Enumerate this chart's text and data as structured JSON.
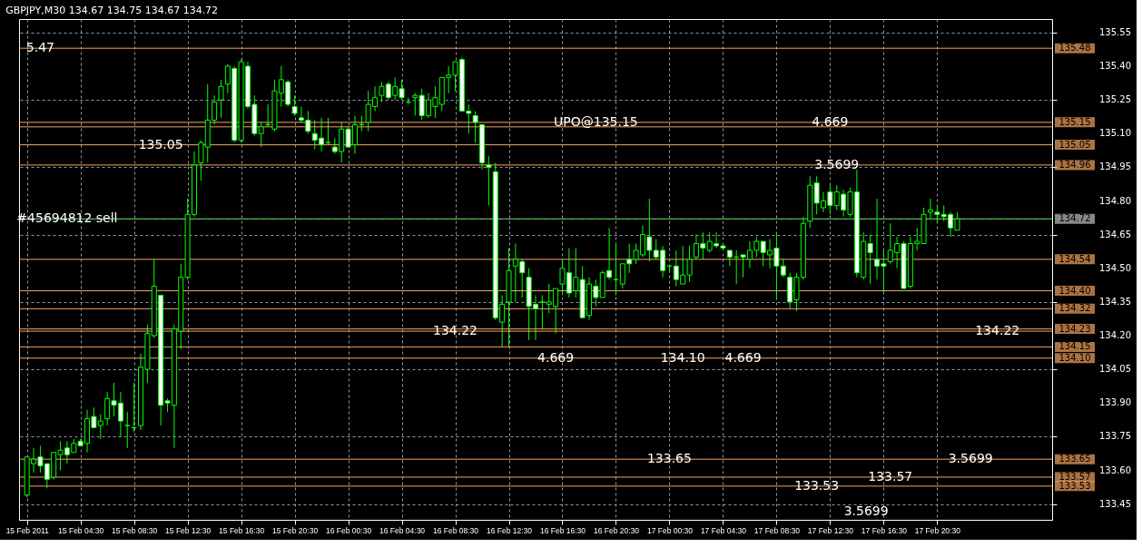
{
  "chart_data": {
    "type": "candlestick",
    "title": "GBPJPY,M30 134.67 134.75 134.67 134.72",
    "color": "#00ff00",
    "grid": true,
    "x": [
      "2011-02-15T00:30",
      "2011-02-15T01:00",
      "2011-02-15T01:30",
      "2011-02-15T02:00",
      "2011-02-15T02:30",
      "2011-02-15T03:00",
      "2011-02-15T03:30",
      "2011-02-15T04:00",
      "2011-02-15T04:30",
      "2011-02-15T05:00",
      "2011-02-15T05:30",
      "2011-02-15T06:00",
      "2011-02-15T06:30",
      "2011-02-15T07:00",
      "2011-02-15T07:30",
      "2011-02-15T08:00",
      "2011-02-15T08:30",
      "2011-02-15T09:00",
      "2011-02-15T09:30",
      "2011-02-15T10:00",
      "2011-02-15T10:30",
      "2011-02-15T11:00",
      "2011-02-15T11:30",
      "2011-02-15T12:00",
      "2011-02-15T12:30",
      "2011-02-15T13:00",
      "2011-02-15T13:30",
      "2011-02-15T14:00",
      "2011-02-15T14:30",
      "2011-02-15T15:00",
      "2011-02-15T15:30",
      "2011-02-15T16:00",
      "2011-02-15T16:30",
      "2011-02-15T17:00",
      "2011-02-15T17:30",
      "2011-02-15T18:00",
      "2011-02-15T18:30",
      "2011-02-15T19:00",
      "2011-02-15T19:30",
      "2011-02-15T20:00",
      "2011-02-15T20:30",
      "2011-02-15T21:00",
      "2011-02-15T21:30",
      "2011-02-15T22:00",
      "2011-02-15T22:30",
      "2011-02-15T23:00",
      "2011-02-15T23:30",
      "2011-02-16T00:00",
      "2011-02-16T00:30",
      "2011-02-16T01:00",
      "2011-02-16T01:30",
      "2011-02-16T02:00",
      "2011-02-16T02:30",
      "2011-02-16T03:00",
      "2011-02-16T03:30",
      "2011-02-16T04:00",
      "2011-02-16T04:30",
      "2011-02-16T05:00",
      "2011-02-16T05:30",
      "2011-02-16T06:00",
      "2011-02-16T06:30",
      "2011-02-16T07:00",
      "2011-02-16T07:30",
      "2011-02-16T08:00",
      "2011-02-16T08:30",
      "2011-02-16T09:00",
      "2011-02-16T09:30",
      "2011-02-16T10:00",
      "2011-02-16T10:30",
      "2011-02-16T11:00",
      "2011-02-16T11:30",
      "2011-02-16T12:00",
      "2011-02-16T12:30",
      "2011-02-16T13:00",
      "2011-02-16T13:30",
      "2011-02-16T14:00",
      "2011-02-16T14:30",
      "2011-02-16T15:00",
      "2011-02-16T15:30",
      "2011-02-16T16:00",
      "2011-02-16T16:30",
      "2011-02-16T17:00",
      "2011-02-16T17:30",
      "2011-02-16T18:00",
      "2011-02-16T18:30",
      "2011-02-16T19:00",
      "2011-02-16T19:30",
      "2011-02-16T20:00",
      "2011-02-16T20:30",
      "2011-02-16T21:00",
      "2011-02-16T21:30",
      "2011-02-16T22:00",
      "2011-02-16T22:30",
      "2011-02-16T23:00",
      "2011-02-16T23:30",
      "2011-02-17T00:00",
      "2011-02-17T00:30",
      "2011-02-17T01:00",
      "2011-02-17T01:30",
      "2011-02-17T02:00",
      "2011-02-17T02:30",
      "2011-02-17T03:00",
      "2011-02-17T03:30",
      "2011-02-17T04:00",
      "2011-02-17T04:30",
      "2011-02-17T05:00",
      "2011-02-17T05:30",
      "2011-02-17T06:00",
      "2011-02-17T06:30",
      "2011-02-17T07:00",
      "2011-02-17T07:30",
      "2011-02-17T08:00",
      "2011-02-17T08:30",
      "2011-02-17T09:00",
      "2011-02-17T09:30",
      "2011-02-17T10:00",
      "2011-02-17T10:30",
      "2011-02-17T11:00",
      "2011-02-17T11:30",
      "2011-02-17T12:00",
      "2011-02-17T12:30",
      "2011-02-17T13:00",
      "2011-02-17T13:30",
      "2011-02-17T14:00",
      "2011-02-17T14:30",
      "2011-02-17T15:00",
      "2011-02-17T15:30",
      "2011-02-17T16:00",
      "2011-02-17T16:30",
      "2011-02-17T17:00",
      "2011-02-17T17:30",
      "2011-02-17T18:00",
      "2011-02-17T18:30",
      "2011-02-17T19:00",
      "2011-02-17T19:30",
      "2011-02-17T20:00",
      "2011-02-17T20:30",
      "2011-02-17T21:00",
      "2011-02-17T21:30",
      "2011-02-17T22:00"
    ],
    "ohlc": [
      [
        133.49,
        133.66,
        133.48,
        133.66
      ],
      [
        133.63,
        133.7,
        133.59,
        133.65
      ],
      [
        133.66,
        133.71,
        133.59,
        133.62
      ],
      [
        133.63,
        133.63,
        133.52,
        133.56
      ],
      [
        133.57,
        133.68,
        133.56,
        133.68
      ],
      [
        133.67,
        133.73,
        133.6,
        133.69
      ],
      [
        133.7,
        133.73,
        133.63,
        133.67
      ],
      [
        133.68,
        133.74,
        133.68,
        133.72
      ],
      [
        133.73,
        133.74,
        133.71,
        133.71
      ],
      [
        133.72,
        133.87,
        133.68,
        133.83
      ],
      [
        133.84,
        133.88,
        133.79,
        133.79
      ],
      [
        133.8,
        133.85,
        133.74,
        133.82
      ],
      [
        133.83,
        133.95,
        133.8,
        133.92
      ],
      [
        133.91,
        133.99,
        133.84,
        133.89
      ],
      [
        133.9,
        133.95,
        133.75,
        133.82
      ],
      [
        133.8,
        133.86,
        133.7,
        133.8
      ],
      [
        133.79,
        133.99,
        133.77,
        133.79
      ],
      [
        133.8,
        134.12,
        133.78,
        134.06
      ],
      [
        134.05,
        134.25,
        133.99,
        134.21
      ],
      [
        134.2,
        134.54,
        134.19,
        134.42
      ],
      [
        134.38,
        134.38,
        133.8,
        133.89
      ],
      [
        133.91,
        133.92,
        133.86,
        133.9
      ],
      [
        133.89,
        134.25,
        133.7,
        134.23
      ],
      [
        134.22,
        134.52,
        134.14,
        134.46
      ],
      [
        134.46,
        134.81,
        134.45,
        134.74
      ],
      [
        134.74,
        135.02,
        134.73,
        134.96
      ],
      [
        134.97,
        135.07,
        134.89,
        135.06
      ],
      [
        135.04,
        135.32,
        134.97,
        135.16
      ],
      [
        135.16,
        135.27,
        135.14,
        135.24
      ],
      [
        135.25,
        135.34,
        135.17,
        135.31
      ],
      [
        135.32,
        135.41,
        135.28,
        135.4
      ],
      [
        135.39,
        135.4,
        135.06,
        135.07
      ],
      [
        135.07,
        135.43,
        135.06,
        135.42
      ],
      [
        135.4,
        135.42,
        135.21,
        135.22
      ],
      [
        135.23,
        135.27,
        135.09,
        135.1
      ],
      [
        135.1,
        135.15,
        135.04,
        135.13
      ],
      [
        135.14,
        135.23,
        135.13,
        135.14
      ],
      [
        135.12,
        135.34,
        135.11,
        135.29
      ],
      [
        135.28,
        135.4,
        135.22,
        135.34
      ],
      [
        135.33,
        135.34,
        135.22,
        135.23
      ],
      [
        135.22,
        135.27,
        135.18,
        135.19
      ],
      [
        135.17,
        135.22,
        135.15,
        135.16
      ],
      [
        135.16,
        135.2,
        135.1,
        135.11
      ],
      [
        135.1,
        135.16,
        135.03,
        135.07
      ],
      [
        135.08,
        135.17,
        135.02,
        135.05
      ],
      [
        135.06,
        135.17,
        135.05,
        135.06
      ],
      [
        135.04,
        135.08,
        135.01,
        135.02
      ],
      [
        135.02,
        135.15,
        134.97,
        135.12
      ],
      [
        135.12,
        135.13,
        135.04,
        135.04
      ],
      [
        135.05,
        135.18,
        135.01,
        135.14
      ],
      [
        135.14,
        135.18,
        135.11,
        135.14
      ],
      [
        135.15,
        135.29,
        135.11,
        135.23
      ],
      [
        135.22,
        135.31,
        135.2,
        135.26
      ],
      [
        135.27,
        135.33,
        135.24,
        135.31
      ],
      [
        135.32,
        135.33,
        135.25,
        135.26
      ],
      [
        135.27,
        135.35,
        135.25,
        135.31
      ],
      [
        135.3,
        135.34,
        135.25,
        135.26
      ],
      [
        135.24,
        135.26,
        135.23,
        135.24
      ],
      [
        135.26,
        135.28,
        135.18,
        135.27
      ],
      [
        135.27,
        135.3,
        135.16,
        135.18
      ],
      [
        135.18,
        135.28,
        135.17,
        135.25
      ],
      [
        135.22,
        135.31,
        135.17,
        135.26
      ],
      [
        135.23,
        135.35,
        135.2,
        135.35
      ],
      [
        135.35,
        135.4,
        135.28,
        135.36
      ],
      [
        135.36,
        135.42,
        135.29,
        135.42
      ],
      [
        135.43,
        135.44,
        135.2,
        135.2
      ],
      [
        135.2,
        135.23,
        135.1,
        135.19
      ],
      [
        135.18,
        135.2,
        135.06,
        135.15
      ],
      [
        135.14,
        135.14,
        134.94,
        134.97
      ],
      [
        134.96,
        135.0,
        134.78,
        134.95
      ],
      [
        134.93,
        134.97,
        134.27,
        134.28
      ],
      [
        134.26,
        134.38,
        134.15,
        134.34
      ],
      [
        134.35,
        134.59,
        134.15,
        134.49
      ],
      [
        134.51,
        134.61,
        134.35,
        134.54
      ],
      [
        134.53,
        134.54,
        134.37,
        134.48
      ],
      [
        134.46,
        134.5,
        134.18,
        134.33
      ],
      [
        134.34,
        134.38,
        134.18,
        134.32
      ],
      [
        134.35,
        134.38,
        134.23,
        134.35
      ],
      [
        134.34,
        134.43,
        134.3,
        134.35
      ],
      [
        134.33,
        134.41,
        134.21,
        134.41
      ],
      [
        134.43,
        134.54,
        134.38,
        134.5
      ],
      [
        134.48,
        134.59,
        134.37,
        134.39
      ],
      [
        134.4,
        134.59,
        134.37,
        134.46
      ],
      [
        134.45,
        134.51,
        134.28,
        134.28
      ],
      [
        134.29,
        134.46,
        134.27,
        134.43
      ],
      [
        134.42,
        134.45,
        134.33,
        134.37
      ],
      [
        134.37,
        134.49,
        134.37,
        134.48
      ],
      [
        134.49,
        134.68,
        134.45,
        134.46
      ],
      [
        134.45,
        134.61,
        134.38,
        134.45
      ],
      [
        134.43,
        134.52,
        134.41,
        134.52
      ],
      [
        134.54,
        134.61,
        134.48,
        134.52
      ],
      [
        134.54,
        134.61,
        134.52,
        134.58
      ],
      [
        134.56,
        134.69,
        134.55,
        134.65
      ],
      [
        134.64,
        134.81,
        134.53,
        134.58
      ],
      [
        134.58,
        134.63,
        134.54,
        134.55
      ],
      [
        134.58,
        134.6,
        134.46,
        134.49
      ],
      [
        134.51,
        134.51,
        134.48,
        134.51
      ],
      [
        134.51,
        134.58,
        134.42,
        134.45
      ],
      [
        134.43,
        134.6,
        134.43,
        134.47
      ],
      [
        134.47,
        134.6,
        134.44,
        134.54
      ],
      [
        134.55,
        134.65,
        134.54,
        134.61
      ],
      [
        134.61,
        134.66,
        134.54,
        134.59
      ],
      [
        134.58,
        134.66,
        134.57,
        134.62
      ],
      [
        134.61,
        134.66,
        134.59,
        134.6
      ],
      [
        134.6,
        134.61,
        134.58,
        134.59
      ],
      [
        134.58,
        134.58,
        134.51,
        134.55
      ],
      [
        134.55,
        134.58,
        134.43,
        134.55
      ],
      [
        134.56,
        134.56,
        134.46,
        134.55
      ],
      [
        134.54,
        134.62,
        134.5,
        134.58
      ],
      [
        134.58,
        134.64,
        134.55,
        134.62
      ],
      [
        134.62,
        134.62,
        134.51,
        134.57
      ],
      [
        134.56,
        134.63,
        134.5,
        134.58
      ],
      [
        134.59,
        134.66,
        134.36,
        134.51
      ],
      [
        134.51,
        134.54,
        134.46,
        134.47
      ],
      [
        134.46,
        134.48,
        134.32,
        134.35
      ],
      [
        134.36,
        134.48,
        134.31,
        134.46
      ],
      [
        134.46,
        134.73,
        134.45,
        134.7
      ],
      [
        134.71,
        134.91,
        134.68,
        134.87
      ],
      [
        134.88,
        134.91,
        134.74,
        134.79
      ],
      [
        134.77,
        134.84,
        134.75,
        134.8
      ],
      [
        134.84,
        134.87,
        134.74,
        134.78
      ],
      [
        134.78,
        134.87,
        134.76,
        134.84
      ],
      [
        134.83,
        134.85,
        134.73,
        134.76
      ],
      [
        134.74,
        134.86,
        134.73,
        134.84
      ],
      [
        134.84,
        134.94,
        134.46,
        134.48
      ],
      [
        134.46,
        134.66,
        134.45,
        134.62
      ],
      [
        134.61,
        134.65,
        134.43,
        134.57
      ],
      [
        134.54,
        134.81,
        134.45,
        134.51
      ],
      [
        134.52,
        134.58,
        134.39,
        134.51
      ],
      [
        134.53,
        134.7,
        134.52,
        134.58
      ],
      [
        134.57,
        134.64,
        134.5,
        134.61
      ],
      [
        134.61,
        134.62,
        134.41,
        134.41
      ],
      [
        134.42,
        134.64,
        134.41,
        134.61
      ],
      [
        134.61,
        134.68,
        134.58,
        134.62
      ],
      [
        134.61,
        134.77,
        134.61,
        134.74
      ],
      [
        134.75,
        134.81,
        134.72,
        134.76
      ],
      [
        134.75,
        134.78,
        134.7,
        134.74
      ],
      [
        134.74,
        134.78,
        134.71,
        134.73
      ],
      [
        134.74,
        134.75,
        134.64,
        134.68
      ],
      [
        134.67,
        134.75,
        134.67,
        134.72
      ]
    ],
    "xlim": [
      "2011-02-15T00:15",
      "2011-02-18T04:45"
    ],
    "xticks": [
      {
        "value": "2011-02-15T00:30",
        "label": "15 Feb 2011"
      },
      {
        "value": "2011-02-15T04:30",
        "label": "15 Feb 04:30"
      },
      {
        "value": "2011-02-15T08:30",
        "label": "15 Feb 08:30"
      },
      {
        "value": "2011-02-15T12:30",
        "label": "15 Feb 12:30"
      },
      {
        "value": "2011-02-15T16:30",
        "label": "15 Feb 16:30"
      },
      {
        "value": "2011-02-15T20:30",
        "label": "15 Feb 20:30"
      },
      {
        "value": "2011-02-16T00:30",
        "label": "16 Feb 00:30"
      },
      {
        "value": "2011-02-16T04:30",
        "label": "16 Feb 04:30"
      },
      {
        "value": "2011-02-16T08:30",
        "label": "16 Feb 08:30"
      },
      {
        "value": "2011-02-16T12:30",
        "label": "16 Feb 12:30"
      },
      {
        "value": "2011-02-16T16:30",
        "label": "16 Feb 16:30"
      },
      {
        "value": "2011-02-16T20:30",
        "label": "16 Feb 20:30"
      },
      {
        "value": "2011-02-17T00:30",
        "label": "17 Feb 00:30"
      },
      {
        "value": "2011-02-17T04:30",
        "label": "17 Feb 04:30"
      },
      {
        "value": "2011-02-17T08:30",
        "label": "17 Feb 08:30"
      },
      {
        "value": "2011-02-17T12:30",
        "label": "17 Feb 12:30"
      },
      {
        "value": "2011-02-17T16:30",
        "label": "17 Feb 16:30"
      },
      {
        "value": "2011-02-17T20:30",
        "label": "17 Feb 20:30"
      }
    ],
    "ylim": [
      133.38,
      135.61
    ],
    "yticks": [
      {
        "value": 135.55,
        "label": "135.55"
      },
      {
        "value": 135.4,
        "label": "135.40"
      },
      {
        "value": 135.25,
        "label": "135.25"
      },
      {
        "value": 135.1,
        "label": "135.10"
      },
      {
        "value": 134.95,
        "label": "134.95"
      },
      {
        "value": 134.8,
        "label": "134.80"
      },
      {
        "value": 134.65,
        "label": "134.65"
      },
      {
        "value": 134.5,
        "label": "134.50"
      },
      {
        "value": 134.35,
        "label": "134.35"
      },
      {
        "value": 134.2,
        "label": "134.20"
      },
      {
        "value": 134.05,
        "label": "134.05"
      },
      {
        "value": 133.9,
        "label": "133.90"
      },
      {
        "value": 133.75,
        "label": "133.75"
      },
      {
        "value": 133.6,
        "label": "133.60"
      },
      {
        "value": 133.45,
        "label": "133.45"
      }
    ],
    "ref_lines": [
      {
        "axis": "y",
        "value": 135.48,
        "label": "135.48",
        "color": "#f4a460"
      },
      {
        "axis": "y",
        "value": 135.15,
        "label": "135.15",
        "color": "#f4a460"
      },
      {
        "axis": "y",
        "value": 135.13,
        "color": "#f4a460"
      },
      {
        "axis": "y",
        "value": 135.05,
        "label": "135.05",
        "color": "#f4a460"
      },
      {
        "axis": "y",
        "value": 134.96,
        "label": "134.96",
        "color": "#f4a460"
      },
      {
        "axis": "y",
        "value": 134.72,
        "label": "134.72",
        "color": "#c0c0c0"
      },
      {
        "axis": "y",
        "value": 134.72,
        "color": "#00c000",
        "line_style": "dashed"
      },
      {
        "axis": "y",
        "value": 134.54,
        "label": "134.54",
        "color": "#f4a460"
      },
      {
        "axis": "y",
        "value": 134.4,
        "label": "134.40",
        "color": "#f4a460"
      },
      {
        "axis": "y",
        "value": 134.32,
        "label": "134.32",
        "color": "#f4a460"
      },
      {
        "axis": "y",
        "value": 134.23,
        "label": "134.23",
        "color": "#f4a460"
      },
      {
        "axis": "y",
        "value": 134.22,
        "color": "#f4a460"
      },
      {
        "axis": "y",
        "value": 134.15,
        "label": "134.15",
        "color": "#f4a460"
      },
      {
        "axis": "y",
        "value": 134.1,
        "label": "134.10",
        "color": "#f4a460"
      },
      {
        "axis": "y",
        "value": 133.65,
        "label": "133.65",
        "color": "#f4a460"
      },
      {
        "axis": "y",
        "value": 133.57,
        "label": "133.57",
        "color": "#f4a460"
      },
      {
        "axis": "y",
        "value": 133.53,
        "label": "133.53",
        "color": "#f4a460"
      }
    ],
    "annotations": [
      {
        "text": "#45694812 sell",
        "x": "2011-02-15T03:30",
        "y": 134.72
      },
      {
        "text": "5.47",
        "x": "2011-02-15T01:30",
        "y": 135.48
      },
      {
        "text": "135.05",
        "x": "2011-02-15T10:30",
        "y": 135.05
      },
      {
        "text": "134.22",
        "x": "2011-02-16T08:30",
        "y": 134.22
      },
      {
        "text": "134.10",
        "x": "2011-02-17T01:30",
        "y": 134.1
      },
      {
        "text": "133.65",
        "x": "2011-02-17T00:30",
        "y": 133.65
      },
      {
        "text": "133.53",
        "x": "2011-02-17T11:30",
        "y": 133.53
      },
      {
        "text": "133.57",
        "x": "2011-02-17T17:00",
        "y": 133.57
      },
      {
        "text": "134.22",
        "x": "2011-02-18T01:00",
        "y": 134.22
      },
      {
        "text": "UPO@135.15",
        "x": "2011-02-16T19:00",
        "y": 135.15
      },
      {
        "text": "4.669",
        "x": "2011-02-17T12:30",
        "y": 135.15
      },
      {
        "text": "3.5699",
        "x": "2011-02-17T13:00",
        "y": 134.96
      },
      {
        "text": "4.669",
        "x": "2011-02-16T16:00",
        "y": 134.1
      },
      {
        "text": "4.669",
        "x": "2011-02-17T06:00",
        "y": 134.1
      },
      {
        "text": "3.5699",
        "x": "2011-02-17T23:00",
        "y": 133.65
      },
      "3.5699"
    ]
  }
}
